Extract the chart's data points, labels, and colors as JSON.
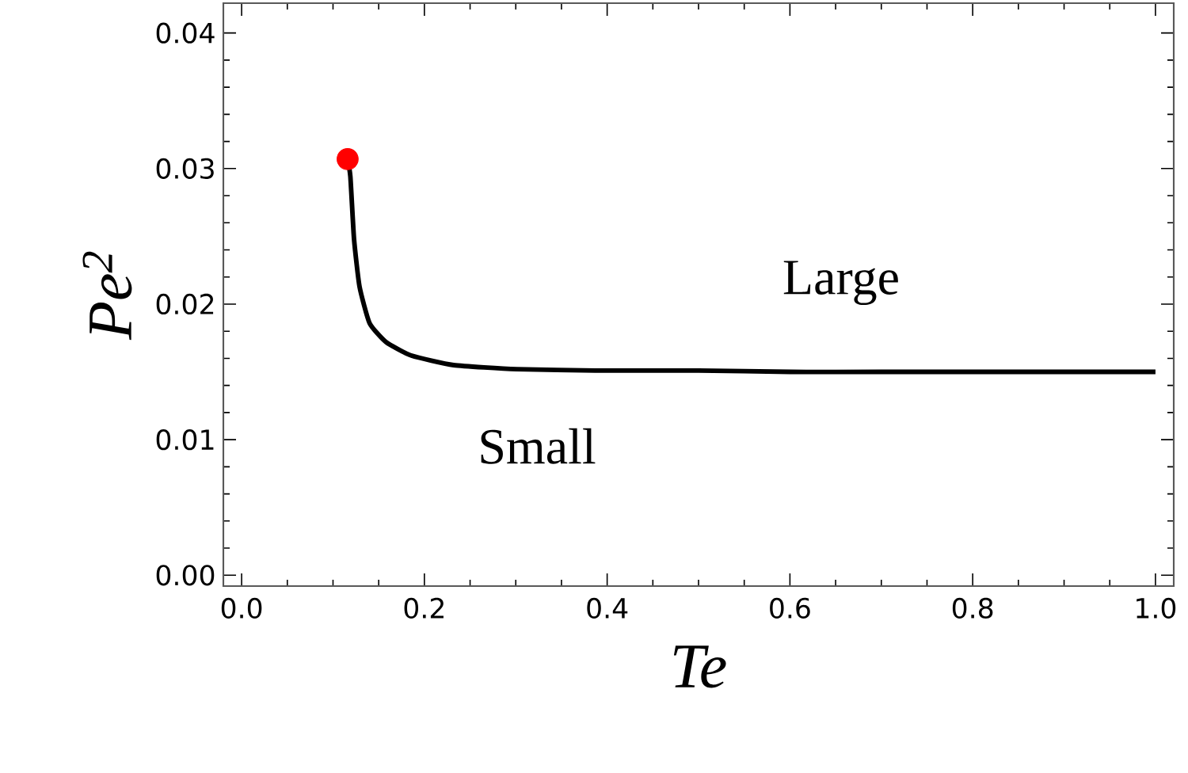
{
  "chart_data": {
    "type": "line",
    "xlabel": "Te",
    "ylabel": "Pe$^{2}$",
    "xlim": [
      -0.02,
      1.02
    ],
    "ylim": [
      -0.0008,
      0.0422
    ],
    "xticks": [
      {
        "value": 0,
        "label": "0.0"
      },
      {
        "value": 0.2,
        "label": "0.2"
      },
      {
        "value": 0.4,
        "label": "0.4"
      },
      {
        "value": 0.6,
        "label": "0.6"
      },
      {
        "value": 0.8,
        "label": "0.8"
      },
      {
        "value": 1,
        "label": "1.0"
      }
    ],
    "yticks": [
      {
        "value": 0,
        "label": "0.00"
      },
      {
        "value": 0.01,
        "label": "0.01"
      },
      {
        "value": 0.02,
        "label": "0.02"
      },
      {
        "value": 0.03,
        "label": "0.03"
      },
      {
        "value": 0.04,
        "label": "0.04"
      }
    ],
    "series": [
      {
        "color": "#000000",
        "x": [
          0.116,
          0.119,
          0.123,
          0.129,
          0.14,
          0.158,
          0.186,
          0.232,
          0.301,
          0.387,
          0.5,
          0.6,
          0.7,
          0.8,
          0.9,
          1.0
        ],
        "values": [
          0.0307,
          0.0294,
          0.0248,
          0.0213,
          0.0186,
          0.0172,
          0.0162,
          0.0155,
          0.0152,
          0.0151,
          0.0151,
          0.015,
          0.015,
          0.015,
          0.015,
          0.015
        ]
      },
      {
        "type": "scatter",
        "color": "#ff0000",
        "marker": "circle",
        "x": [
          0.116
        ],
        "values": [
          0.0307
        ]
      }
    ],
    "annotations": [
      "Large",
      "Small"
    ]
  }
}
